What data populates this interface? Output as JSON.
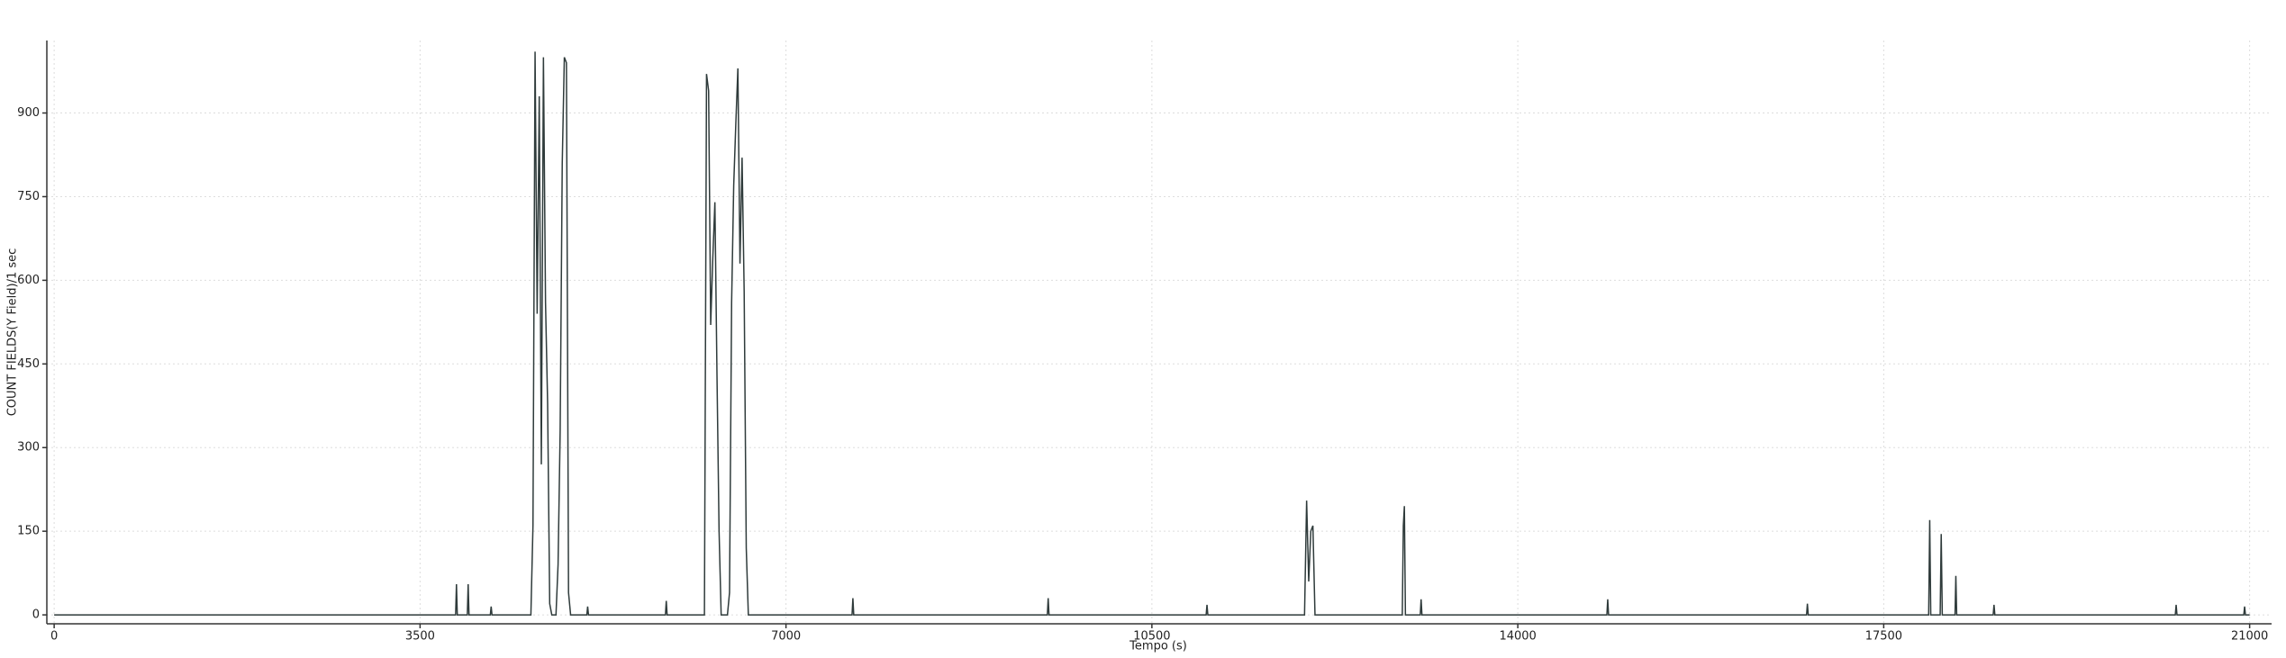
{
  "chart_data": {
    "type": "line",
    "xlabel": "Tempo (s)",
    "ylabel": "COUNT FIELDS(Y Field)/1 sec",
    "x": [
      0,
      3840,
      3848,
      3856,
      3952,
      3960,
      3968,
      4172,
      4180,
      4188,
      4560,
      4580,
      4600,
      4620,
      4640,
      4660,
      4680,
      4700,
      4720,
      4740,
      4760,
      4780,
      4800,
      4820,
      4840,
      4860,
      4880,
      4900,
      4920,
      4940,
      4960,
      4980,
      5095,
      5103,
      5111,
      5847,
      5855,
      5863,
      6220,
      6240,
      6260,
      6280,
      6300,
      6320,
      6340,
      6360,
      6380,
      6400,
      6420,
      6440,
      6460,
      6480,
      6500,
      6520,
      6540,
      6560,
      6580,
      6600,
      6620,
      6640,
      7632,
      7640,
      7648,
      9500,
      9508,
      9516,
      11019,
      11027,
      11035,
      11960,
      11980,
      12000,
      12020,
      12040,
      12060,
      12080,
      12100,
      12895,
      12905,
      12915,
      12925,
      13067,
      13075,
      13083,
      14852,
      14860,
      14868,
      16762,
      16770,
      16778,
      17930,
      17940,
      17950,
      18040,
      18050,
      18060,
      18182,
      18190,
      18198,
      18547,
      18555,
      18563,
      20289,
      20297,
      20305,
      20944,
      20952,
      20960,
      21000
    ],
    "values": [
      0,
      0,
      55,
      0,
      0,
      55,
      0,
      0,
      15,
      0,
      0,
      160,
      1010,
      540,
      930,
      270,
      1000,
      560,
      380,
      20,
      0,
      0,
      0,
      90,
      330,
      810,
      1000,
      990,
      40,
      0,
      0,
      0,
      0,
      15,
      0,
      0,
      25,
      0,
      0,
      970,
      940,
      520,
      640,
      740,
      430,
      150,
      0,
      0,
      0,
      0,
      40,
      560,
      770,
      880,
      980,
      630,
      820,
      580,
      120,
      0,
      0,
      30,
      0,
      0,
      30,
      0,
      0,
      18,
      0,
      0,
      205,
      60,
      150,
      160,
      0,
      0,
      0,
      0,
      160,
      195,
      0,
      0,
      28,
      0,
      0,
      28,
      0,
      0,
      20,
      0,
      0,
      170,
      0,
      0,
      145,
      0,
      0,
      70,
      0,
      0,
      18,
      0,
      0,
      18,
      0,
      0,
      15,
      0,
      0
    ],
    "color": "#2f3b3b",
    "xlim": [
      -70,
      21210
    ],
    "xticks": [
      0,
      3500,
      7000,
      10500,
      14000,
      17500,
      21000
    ],
    "ylim": [
      -16,
      1030
    ],
    "yticks": [
      0,
      150,
      300,
      450,
      600,
      750,
      900
    ],
    "grid": true
  }
}
